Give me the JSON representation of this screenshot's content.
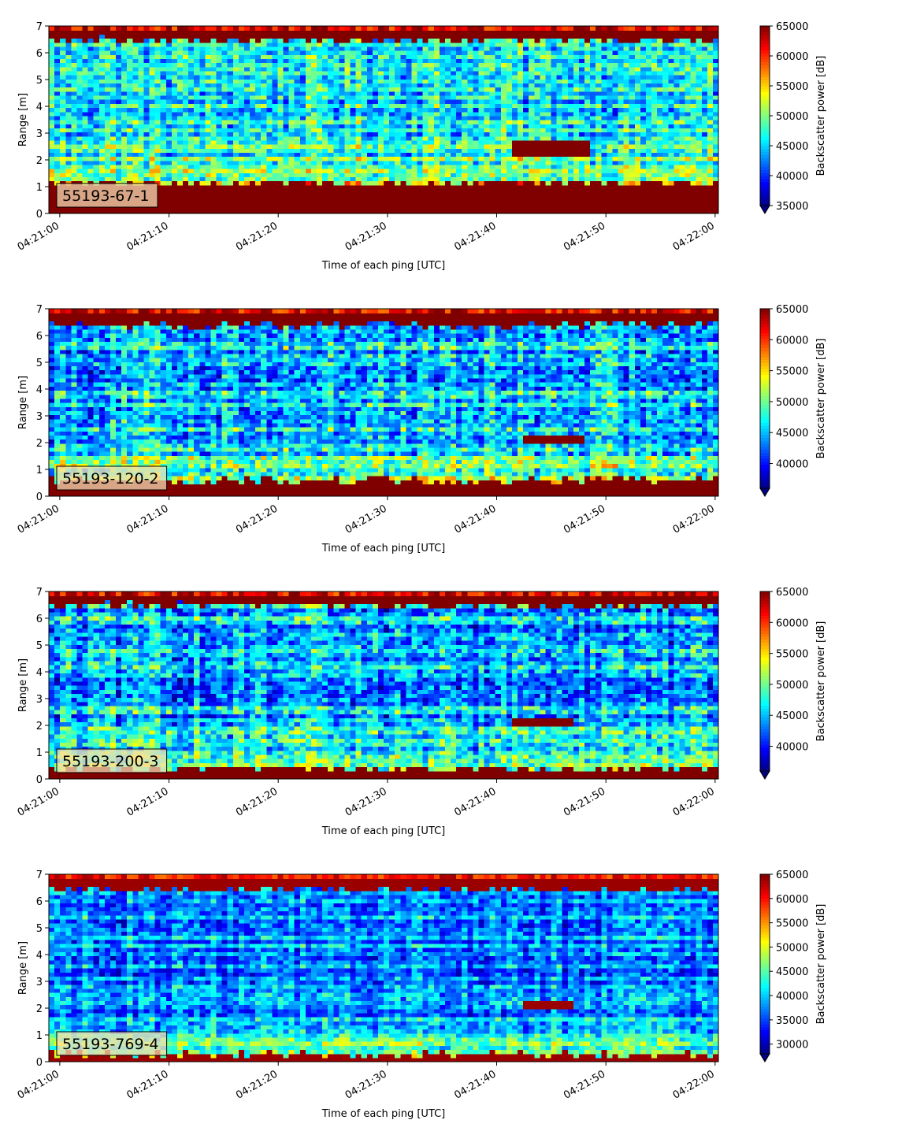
{
  "chart_data": [
    {
      "type": "heatmap",
      "label": "55193-67-1",
      "xlabel": "Time of each ping [UTC]",
      "ylabel": "Range [m]",
      "xticks": [
        "04:21:00",
        "04:21:10",
        "04:21:20",
        "04:21:30",
        "04:21:40",
        "04:21:50",
        "04:22:00"
      ],
      "x_range_seconds": [
        -1,
        60.3
      ],
      "ylim": [
        0,
        7
      ],
      "yticks": [
        "0",
        "1",
        "2",
        "3",
        "4",
        "5",
        "6",
        "7"
      ],
      "colorbar": {
        "label": "Backscatter power [dB]",
        "range": [
          35000,
          65000
        ],
        "ticks": [
          "35000",
          "40000",
          "45000",
          "50000",
          "55000",
          "60000",
          "65000"
        ]
      },
      "colormap": "jet",
      "layers": {
        "low_band_top_m": 1.15,
        "low_band_value": 66000,
        "high_band_bottom_m": 6.5,
        "high_band_value": 66000,
        "background_mean": 46000,
        "near_bottom_mean": 52000
      },
      "feature": {
        "start_s": 41.5,
        "end_s": 48.5,
        "range_m": [
          2.1,
          2.75
        ],
        "value": 66000
      }
    },
    {
      "type": "heatmap",
      "label": "55193-120-2",
      "xlabel": "Time of each ping [UTC]",
      "ylabel": "Range [m]",
      "xticks": [
        "04:21:00",
        "04:21:10",
        "04:21:20",
        "04:21:30",
        "04:21:40",
        "04:21:50",
        "04:22:00"
      ],
      "x_range_seconds": [
        -1,
        60.3
      ],
      "ylim": [
        0,
        7
      ],
      "yticks": [
        "0",
        "1",
        "2",
        "3",
        "4",
        "5",
        "6",
        "7"
      ],
      "colorbar": {
        "label": "Backscatter power [dB]",
        "range": [
          36000,
          65000
        ],
        "ticks": [
          "40000",
          "45000",
          "50000",
          "55000",
          "60000",
          "65000"
        ]
      },
      "colormap": "jet",
      "layers": {
        "low_band_top_m": 0.6,
        "low_band_value": 66000,
        "high_band_bottom_m": 6.4,
        "high_band_value": 66000,
        "background_mean": 45500,
        "near_bottom_mean": 51000
      },
      "feature": {
        "start_s": 42.5,
        "end_s": 48.0,
        "range_m": [
          1.95,
          2.35
        ],
        "value": 66000
      }
    },
    {
      "type": "heatmap",
      "label": "55193-200-3",
      "xlabel": "Time of each ping [UTC]",
      "ylabel": "Range [m]",
      "xticks": [
        "04:21:00",
        "04:21:10",
        "04:21:20",
        "04:21:30",
        "04:21:40",
        "04:21:50",
        "04:22:00"
      ],
      "x_range_seconds": [
        -1,
        60.3
      ],
      "ylim": [
        0,
        7
      ],
      "yticks": [
        "0",
        "1",
        "2",
        "3",
        "4",
        "5",
        "6",
        "7"
      ],
      "colorbar": {
        "label": "Backscatter power [dB]",
        "range": [
          36000,
          65000
        ],
        "ticks": [
          "40000",
          "45000",
          "50000",
          "55000",
          "60000",
          "65000"
        ]
      },
      "colormap": "jet",
      "layers": {
        "low_band_top_m": 0.4,
        "low_band_value": 66000,
        "high_band_bottom_m": 6.5,
        "high_band_value": 66000,
        "background_mean": 45000,
        "near_bottom_mean": 51500
      },
      "feature": {
        "start_s": 41.5,
        "end_s": 47.0,
        "range_m": [
          1.95,
          2.35
        ],
        "value": 66000
      }
    },
    {
      "type": "heatmap",
      "label": "55193-769-4",
      "xlabel": "Time of each ping [UTC]",
      "ylabel": "Range [m]",
      "xticks": [
        "04:21:00",
        "04:21:10",
        "04:21:20",
        "04:21:30",
        "04:21:40",
        "04:21:50",
        "04:22:00"
      ],
      "x_range_seconds": [
        -1,
        60.3
      ],
      "ylim": [
        0,
        7
      ],
      "yticks": [
        "0",
        "1",
        "2",
        "3",
        "4",
        "5",
        "6",
        "7"
      ],
      "colorbar": {
        "label": "Backscatter power [dB]",
        "range": [
          28000,
          65000
        ],
        "ticks": [
          "30000",
          "35000",
          "40000",
          "45000",
          "50000",
          "55000",
          "60000",
          "65000"
        ]
      },
      "colormap": "jet",
      "layers": {
        "low_band_top_m": 0.3,
        "low_band_value": 64000,
        "high_band_bottom_m": 6.45,
        "high_band_value": 64000,
        "background_mean": 37500,
        "near_bottom_mean": 47000
      },
      "feature": {
        "start_s": 42.5,
        "end_s": 47.0,
        "range_m": [
          1.95,
          2.3
        ],
        "value": 64000
      }
    }
  ]
}
